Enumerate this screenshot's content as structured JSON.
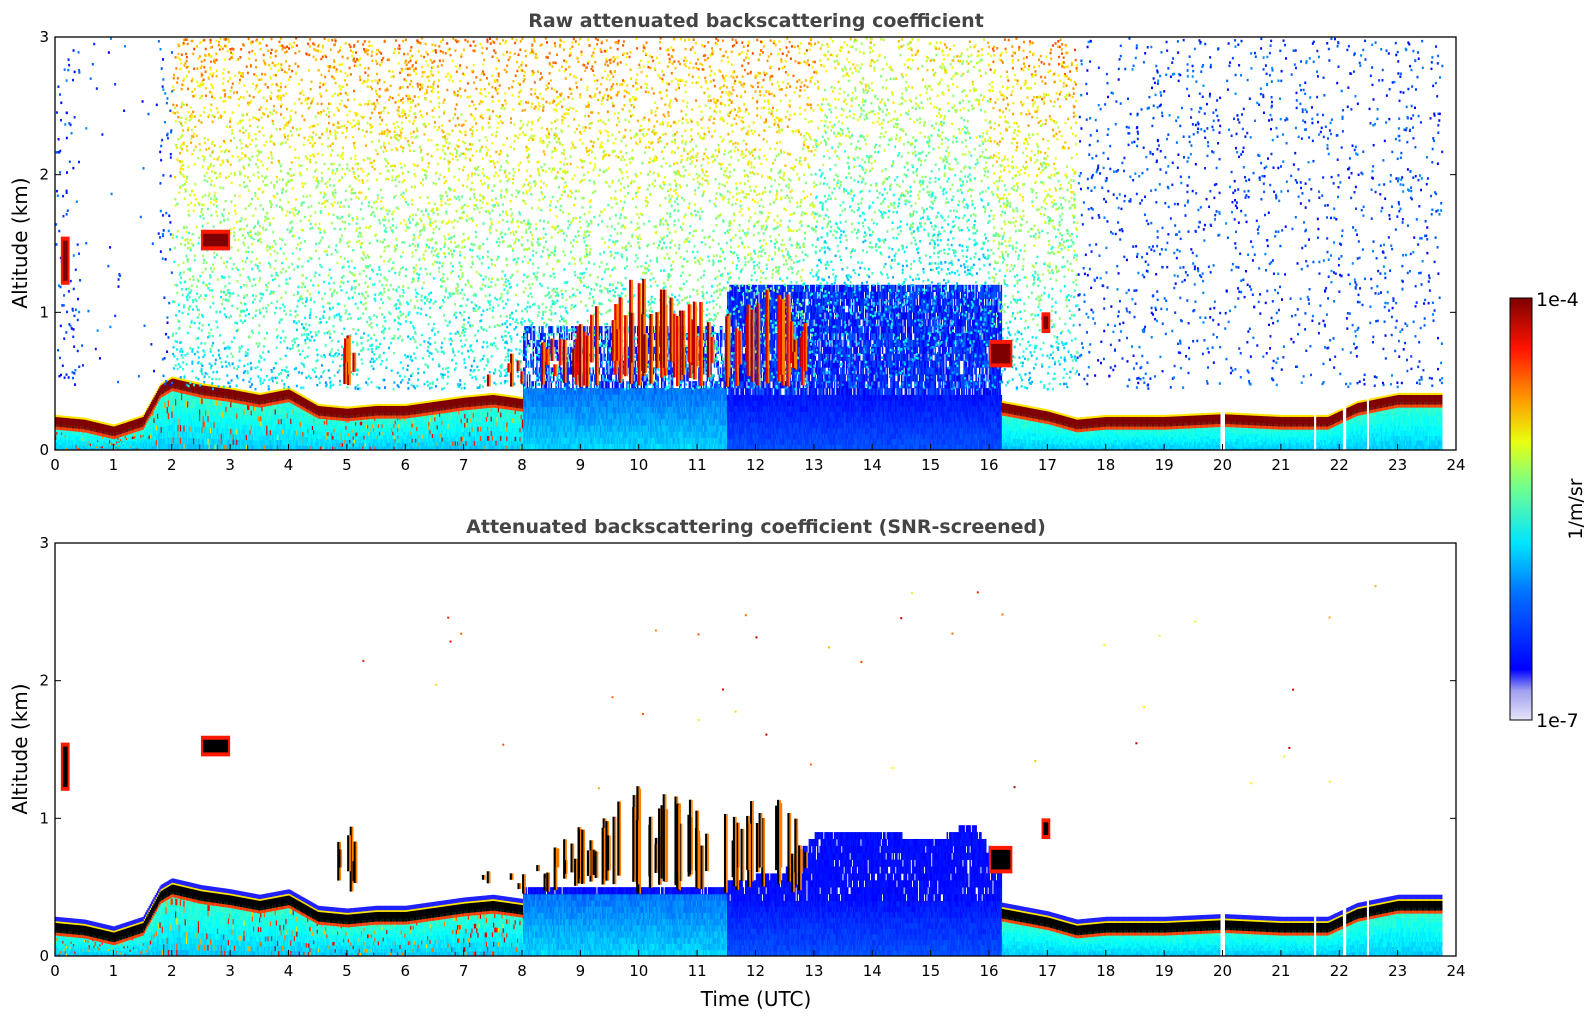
{
  "colors": {
    "jet": [
      "#00007f",
      "#0000ff",
      "#007fff",
      "#00ffff",
      "#7fff7f",
      "#ffff00",
      "#ff7f00",
      "#ff0000",
      "#7f0000"
    ],
    "low_shades": [
      "#e8e8f8",
      "#c8c8f0",
      "#a0a0ee",
      "#7070f2"
    ],
    "screened_black": "#000000",
    "title_color": "#444444"
  },
  "chart_data": [
    {
      "type": "heatmap",
      "title": "Raw attenuated backscattering coefficient",
      "xlabel": "",
      "ylabel": "Altitude (km)",
      "xlim": [
        0,
        24
      ],
      "ylim": [
        0,
        3
      ],
      "x_ticks": [
        "0",
        "1",
        "2",
        "3",
        "4",
        "5",
        "6",
        "7",
        "8",
        "9",
        "10",
        "11",
        "12",
        "13",
        "14",
        "15",
        "16",
        "17",
        "18",
        "19",
        "20",
        "21",
        "22",
        "23",
        "24"
      ],
      "y_ticks": [
        "0",
        "1",
        "2",
        "3"
      ],
      "screened": false,
      "boundary_layer_top_km": [
        {
          "t": 0.0,
          "h": 0.22
        },
        {
          "t": 0.5,
          "h": 0.2
        },
        {
          "t": 1.0,
          "h": 0.15
        },
        {
          "t": 1.5,
          "h": 0.22
        },
        {
          "t": 1.8,
          "h": 0.45
        },
        {
          "t": 2.0,
          "h": 0.5
        },
        {
          "t": 2.5,
          "h": 0.45
        },
        {
          "t": 3.0,
          "h": 0.42
        },
        {
          "t": 3.5,
          "h": 0.38
        },
        {
          "t": 4.0,
          "h": 0.42
        },
        {
          "t": 4.5,
          "h": 0.3
        },
        {
          "t": 5.0,
          "h": 0.28
        },
        {
          "t": 5.5,
          "h": 0.3
        },
        {
          "t": 6.0,
          "h": 0.3
        },
        {
          "t": 6.5,
          "h": 0.33
        },
        {
          "t": 7.0,
          "h": 0.36
        },
        {
          "t": 7.5,
          "h": 0.38
        },
        {
          "t": 8.0,
          "h": 0.35
        },
        {
          "t": 16.0,
          "h": 0.34
        },
        {
          "t": 16.5,
          "h": 0.3
        },
        {
          "t": 17.0,
          "h": 0.26
        },
        {
          "t": 17.5,
          "h": 0.2
        },
        {
          "t": 18.0,
          "h": 0.22
        },
        {
          "t": 19.0,
          "h": 0.22
        },
        {
          "t": 20.0,
          "h": 0.24
        },
        {
          "t": 21.0,
          "h": 0.22
        },
        {
          "t": 21.8,
          "h": 0.22
        },
        {
          "t": 22.3,
          "h": 0.32
        },
        {
          "t": 23.0,
          "h": 0.38
        },
        {
          "t": 23.7,
          "h": 0.38
        }
      ],
      "cloud_patches": [
        {
          "t0": 2.5,
          "t1": 3.0,
          "z0": 1.45,
          "z1": 1.6
        },
        {
          "t0": 0.1,
          "t1": 0.25,
          "z0": 1.2,
          "z1": 1.55
        },
        {
          "t0": 16.0,
          "t1": 16.4,
          "z0": 0.6,
          "z1": 0.8
        },
        {
          "t0": 16.9,
          "t1": 17.05,
          "z0": 0.85,
          "z1": 1.0
        }
      ],
      "cloud_streaks": [
        {
          "t": 8.8,
          "z": 0.95
        },
        {
          "t": 9.1,
          "z": 1.05
        },
        {
          "t": 9.5,
          "z": 1.15
        },
        {
          "t": 9.9,
          "z": 1.25
        },
        {
          "t": 10.2,
          "z": 1.1
        },
        {
          "t": 10.5,
          "z": 1.2
        },
        {
          "t": 10.8,
          "z": 1.15
        },
        {
          "t": 11.1,
          "z": 1.1
        },
        {
          "t": 11.6,
          "z": 1.05
        },
        {
          "t": 12.0,
          "z": 1.2
        },
        {
          "t": 12.4,
          "z": 1.25
        },
        {
          "t": 12.7,
          "z": 1.0
        },
        {
          "t": 8.4,
          "z": 0.85
        },
        {
          "t": 7.9,
          "z": 0.7
        },
        {
          "t": 7.4,
          "z": 0.65
        },
        {
          "t": 6.9,
          "z": 0.6
        },
        {
          "t": 5.0,
          "z": 0.95
        }
      ]
    },
    {
      "type": "heatmap",
      "title": "Attenuated backscattering coefficient (SNR-screened)",
      "xlabel": "Time (UTC)",
      "ylabel": "Altitude (km)",
      "xlim": [
        0,
        24
      ],
      "ylim": [
        0,
        3
      ],
      "x_ticks": [
        "0",
        "1",
        "2",
        "3",
        "4",
        "5",
        "6",
        "7",
        "8",
        "9",
        "10",
        "11",
        "12",
        "13",
        "14",
        "15",
        "16",
        "17",
        "18",
        "19",
        "20",
        "21",
        "22",
        "23",
        "24"
      ],
      "y_ticks": [
        "0",
        "1",
        "2",
        "3"
      ],
      "screened": true,
      "blue_dome_top_km": [
        {
          "t": 8.0,
          "h": 0.45
        },
        {
          "t": 11.5,
          "h": 0.5
        },
        {
          "t": 12.5,
          "h": 0.6
        },
        {
          "t": 13.0,
          "h": 0.85
        },
        {
          "t": 14.0,
          "h": 0.9
        },
        {
          "t": 15.0,
          "h": 0.8
        },
        {
          "t": 15.7,
          "h": 0.95
        },
        {
          "t": 16.1,
          "h": 0.7
        }
      ]
    }
  ],
  "colorbar": {
    "label": "1/m/sr",
    "max_label": "1e-4",
    "min_label": "1e-7",
    "scale": "log",
    "range": [
      1e-07,
      0.0001
    ]
  }
}
